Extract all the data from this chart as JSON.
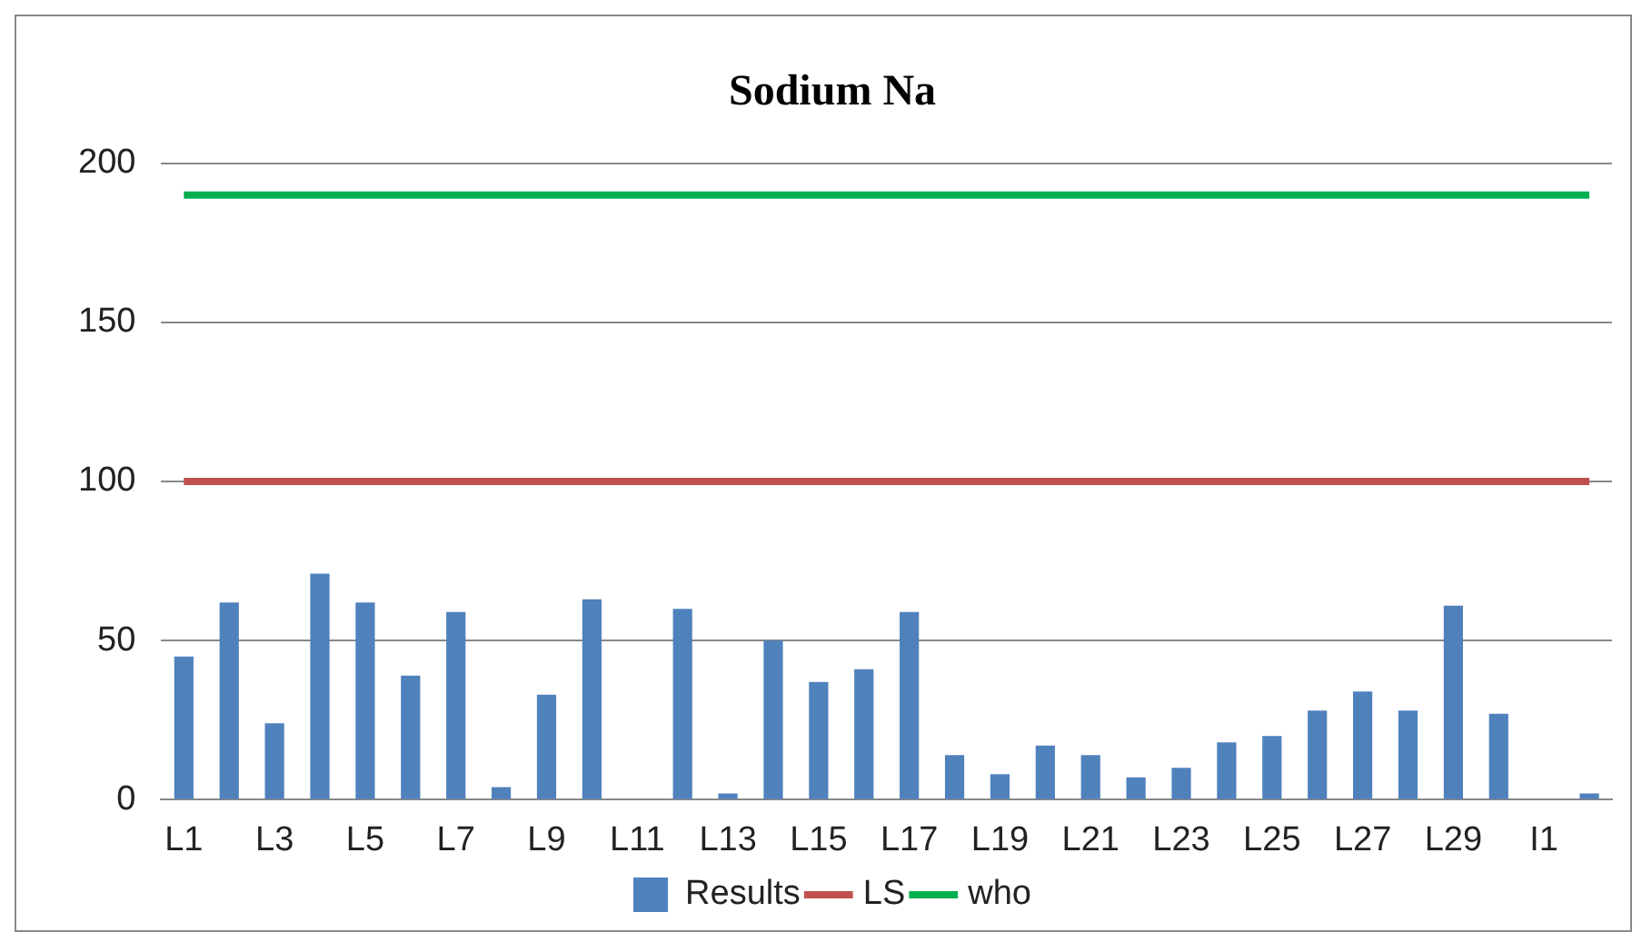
{
  "chart_data": {
    "type": "bar",
    "title": "Sodium Na",
    "categories": [
      "L1",
      null,
      "L3",
      null,
      "L5",
      null,
      "L7",
      null,
      "L9",
      null,
      "L11",
      null,
      "L13",
      null,
      "L15",
      null,
      "L17",
      null,
      "L19",
      null,
      "L21",
      null,
      "L23",
      null,
      "L25",
      null,
      "L27",
      null,
      "L29",
      null,
      "I1",
      null
    ],
    "series": [
      {
        "name": "Results",
        "color": "#4f81bd",
        "values": [
          45,
          62,
          24,
          71,
          62,
          39,
          59,
          4,
          33,
          63,
          null,
          60,
          2,
          50,
          37,
          41,
          59,
          14,
          8,
          17,
          14,
          7,
          10,
          18,
          20,
          28,
          34,
          28,
          61,
          27,
          null,
          2
        ]
      },
      {
        "name": "LS",
        "type": "line",
        "color": "#c0504d",
        "values": [
          100,
          100,
          100,
          100,
          100,
          100,
          100,
          100,
          100,
          100,
          100,
          100,
          100,
          100,
          100,
          100,
          100,
          100,
          100,
          100,
          100,
          100,
          100,
          100,
          100,
          100,
          100,
          100,
          100,
          100,
          100,
          100
        ]
      },
      {
        "name": "who",
        "type": "line",
        "color": "#00b050",
        "values": [
          190,
          190,
          190,
          190,
          190,
          190,
          190,
          190,
          190,
          190,
          190,
          190,
          190,
          190,
          190,
          190,
          190,
          190,
          190,
          190,
          190,
          190,
          190,
          190,
          190,
          190,
          190,
          190,
          190,
          190,
          190,
          190
        ]
      }
    ],
    "ylim": [
      0,
      200
    ],
    "yticks": [
      0,
      50,
      100,
      150,
      200
    ],
    "grid": "y",
    "legend": "bottom",
    "marker": "none"
  }
}
